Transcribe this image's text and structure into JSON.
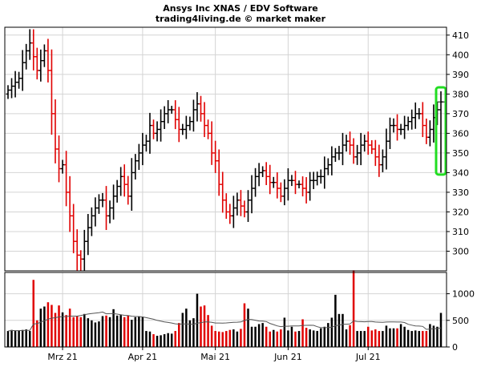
{
  "chart_data": {
    "type": "ohlc",
    "title": "Ansys Inc XNAS / EDV Software",
    "subtitle": "trading4living.de © market maker",
    "price_axis": {
      "ticks": [
        300,
        310,
        320,
        330,
        340,
        350,
        360,
        370,
        380,
        390,
        400,
        410
      ],
      "range": [
        290,
        414
      ]
    },
    "volume_axis": {
      "ticks": [
        0,
        500,
        1000
      ],
      "range": [
        0,
        1400
      ]
    },
    "x_labels": [
      {
        "label": "Mrz 21",
        "index": 15
      },
      {
        "label": "Apr 21",
        "index": 37
      },
      {
        "label": "Mai 21",
        "index": 57
      },
      {
        "label": "Jun 21",
        "index": 77
      },
      {
        "label": "Jul 21",
        "index": 99
      }
    ],
    "last_price": 376,
    "highlight_index": 119,
    "colors": {
      "up": "#000000",
      "down": "#e00000",
      "highlight": "#22dd22",
      "volume_ma": "#555555"
    },
    "close": [
      382,
      384,
      386,
      388,
      396,
      402,
      406,
      399,
      392,
      397,
      402,
      392,
      370,
      352,
      342,
      344,
      330,
      318,
      305,
      298,
      296,
      305,
      312,
      318,
      322,
      326,
      326,
      318,
      322,
      328,
      333,
      338,
      334,
      328,
      340,
      346,
      350,
      354,
      356,
      364,
      360,
      362,
      366,
      370,
      372,
      372,
      367,
      362,
      362,
      364,
      366,
      372,
      375,
      370,
      364,
      360,
      350,
      346,
      334,
      326,
      320,
      318,
      322,
      326,
      323,
      320,
      326,
      332,
      338,
      340,
      341,
      338,
      335,
      335,
      332,
      328,
      332,
      336,
      336,
      334,
      334,
      332,
      330,
      336,
      336,
      338,
      338,
      342,
      344,
      348,
      350,
      350,
      354,
      356,
      354,
      348,
      350,
      354,
      356,
      354,
      352,
      348,
      344,
      348,
      356,
      364,
      364,
      362,
      362,
      364,
      366,
      368,
      370,
      370,
      364,
      358,
      362,
      368,
      372,
      376
    ],
    "volume": [
      300,
      320,
      300,
      310,
      320,
      330,
      300,
      1260,
      500,
      720,
      760,
      840,
      790,
      640,
      780,
      650,
      600,
      720,
      560,
      580,
      560,
      620,
      540,
      500,
      460,
      480,
      580,
      590,
      560,
      710,
      590,
      600,
      560,
      590,
      510,
      560,
      570,
      560,
      300,
      290,
      240,
      210,
      220,
      240,
      260,
      250,
      300,
      450,
      640,
      720,
      500,
      540,
      1000,
      760,
      780,
      600,
      400,
      300,
      290,
      280,
      300,
      320,
      330,
      290,
      340,
      820,
      720,
      380,
      380,
      430,
      450,
      380,
      290,
      320,
      290,
      330,
      550,
      310,
      380,
      290,
      300,
      520,
      360,
      330,
      310,
      300,
      350,
      380,
      450,
      550,
      980,
      620,
      620,
      330,
      410,
      1440,
      300,
      300,
      300,
      380,
      310,
      330,
      300,
      300,
      400,
      350,
      350,
      350,
      430,
      380,
      320,
      300,
      310,
      300,
      300,
      300,
      430,
      400,
      380,
      640
    ]
  }
}
